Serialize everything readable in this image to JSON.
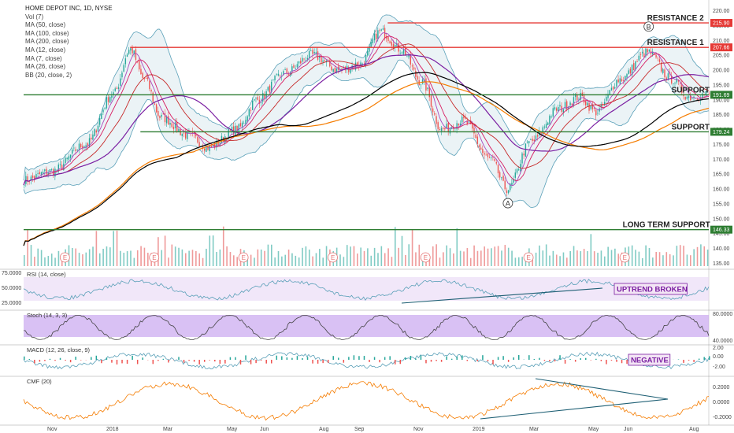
{
  "header": {
    "title": "HOME DEPOT INC, 1D, NYSE",
    "legend": [
      "Vol (7)",
      "MA (50, close)",
      "MA (100, close)",
      "MA (200, close)",
      "MA (12, close)",
      "MA (7, close)",
      "MA (26, close)",
      "BB (20, close, 2)"
    ]
  },
  "colors": {
    "up": "#26a69a",
    "down": "#ef5350",
    "ma50": "#7b1fa2",
    "ma100": "#f57c00",
    "ma200": "#000000",
    "ma12": "#d81b60",
    "ma7": "#ab47bc",
    "ma26": "#c62828",
    "bb": "#5aa0b8",
    "resistance": "#e53935",
    "support": "#2e7d32",
    "osc": "#5aa0b8",
    "cmf": "#f57c00"
  },
  "chart_data": {
    "type": "line",
    "price_axis": {
      "ticks": [
        135.0,
        140.0,
        145.0,
        150.0,
        155.0,
        160.0,
        165.0,
        170.0,
        175.0,
        180.0,
        185.0,
        190.0,
        195.0,
        200.0,
        205.0,
        210.0,
        215.0,
        220.0
      ],
      "range": [
        133,
        222
      ]
    },
    "x_axis": {
      "ticks": [
        "Nov",
        "2018",
        "Mar",
        "May",
        "Jun",
        "Aug",
        "Sep",
        "Nov",
        "2019",
        "Mar",
        "May",
        "Jun",
        "Aug"
      ]
    },
    "price_keyframes": [
      {
        "t": 0,
        "v": 163
      },
      {
        "t": 0.04,
        "v": 166
      },
      {
        "t": 0.09,
        "v": 175
      },
      {
        "t": 0.13,
        "v": 192
      },
      {
        "t": 0.155,
        "v": 207
      },
      {
        "t": 0.175,
        "v": 197
      },
      {
        "t": 0.2,
        "v": 184
      },
      {
        "t": 0.24,
        "v": 178
      },
      {
        "t": 0.27,
        "v": 174
      },
      {
        "t": 0.31,
        "v": 180
      },
      {
        "t": 0.34,
        "v": 190
      },
      {
        "t": 0.38,
        "v": 199
      },
      {
        "t": 0.42,
        "v": 205
      },
      {
        "t": 0.46,
        "v": 200
      },
      {
        "t": 0.49,
        "v": 202
      },
      {
        "t": 0.52,
        "v": 213
      },
      {
        "t": 0.55,
        "v": 207
      },
      {
        "t": 0.58,
        "v": 196
      },
      {
        "t": 0.61,
        "v": 180
      },
      {
        "t": 0.64,
        "v": 183
      },
      {
        "t": 0.68,
        "v": 170
      },
      {
        "t": 0.705,
        "v": 160
      },
      {
        "t": 0.74,
        "v": 176
      },
      {
        "t": 0.78,
        "v": 187
      },
      {
        "t": 0.81,
        "v": 191
      },
      {
        "t": 0.835,
        "v": 186
      },
      {
        "t": 0.87,
        "v": 197
      },
      {
        "t": 0.91,
        "v": 206
      },
      {
        "t": 0.945,
        "v": 197
      },
      {
        "t": 0.97,
        "v": 191
      },
      {
        "t": 1.0,
        "v": 192
      }
    ],
    "levels": [
      {
        "name": "RESISTANCE 2",
        "value": 215.9,
        "label": "215.90",
        "type": "resistance"
      },
      {
        "name": "RESISTANCE 1",
        "value": 207.66,
        "label": "207.66",
        "type": "resistance"
      },
      {
        "name": "SUPPORT",
        "value": 191.69,
        "label": "191.69",
        "type": "support"
      },
      {
        "name": "SUPPORT",
        "value": 179.24,
        "label": "179.24",
        "type": "support"
      },
      {
        "name": "LONG TERM SUPPORT",
        "value": 146.33,
        "label": "146.33",
        "type": "support"
      }
    ],
    "points": [
      {
        "label": "A",
        "value": 160
      },
      {
        "label": "B",
        "value": 212
      }
    ],
    "earnings_markers": [
      "E",
      "E",
      "E",
      "E",
      "E",
      "E",
      "E"
    ],
    "indicators": [
      {
        "name": "RSI (14, close)",
        "ticks": [
          "75.0000",
          "50.0000",
          "25.0000"
        ],
        "annotation": "UPTREND BROKEN"
      },
      {
        "name": "Stoch (14, 3, 3)",
        "ticks": [
          "80.0000",
          "40.0000"
        ]
      },
      {
        "name": "MACD (12, 26, close, 9)",
        "ticks": [
          "2.00",
          "0.00",
          "-2.00"
        ],
        "annotation": "NEGATIVE"
      },
      {
        "name": "CMF (20)",
        "ticks": [
          "0.2000",
          "0.0000",
          "-0.2000"
        ]
      }
    ]
  }
}
